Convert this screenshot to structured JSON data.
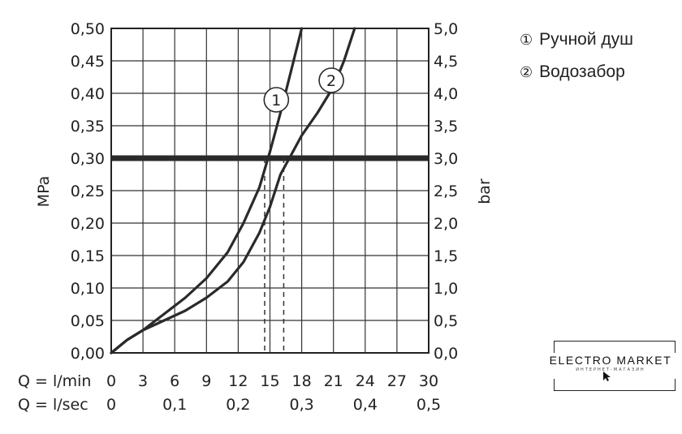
{
  "chart_data": {
    "type": "line",
    "title": "",
    "ylabel": "MPa",
    "ylabel_right": "bar",
    "ylim": [
      0,
      0.5
    ],
    "ylim_right": [
      0,
      5.0
    ],
    "xlim": [
      0,
      30
    ],
    "y_ticks": [
      "0,00",
      "0,05",
      "0,10",
      "0,15",
      "0,20",
      "0,25",
      "0,30",
      "0,35",
      "0,40",
      "0,45",
      "0,50"
    ],
    "y_ticks_right": [
      "0,0",
      "0,5",
      "1,0",
      "1,5",
      "2,0",
      "2,5",
      "3,0",
      "3,5",
      "4,0",
      "4,5",
      "5,0"
    ],
    "x_label_lmin": "Q = l/min",
    "x_ticks_lmin": [
      "0",
      "3",
      "6",
      "9",
      "12",
      "15",
      "18",
      "21",
      "24",
      "27",
      "30"
    ],
    "x_label_lsec": "Q = l/sec",
    "x_ticks_lsec": [
      "0",
      "0,1",
      "0,2",
      "0,3",
      "0,4",
      "0,5"
    ],
    "reference_line_y": 0.3,
    "grid": true,
    "series": [
      {
        "name": "1",
        "x": [
          0,
          1.5,
          3,
          5,
          7,
          9,
          11,
          12.5,
          14,
          15,
          16,
          17,
          18
        ],
        "y": [
          0,
          0.02,
          0.035,
          0.06,
          0.085,
          0.115,
          0.155,
          0.2,
          0.255,
          0.31,
          0.37,
          0.435,
          0.5
        ]
      },
      {
        "name": "2",
        "x": [
          0,
          1.5,
          3,
          5,
          7,
          9,
          11,
          12.5,
          14,
          15,
          16,
          17,
          18,
          19.5,
          21,
          22,
          23
        ],
        "y": [
          0,
          0.02,
          0.035,
          0.05,
          0.065,
          0.085,
          0.11,
          0.14,
          0.185,
          0.225,
          0.275,
          0.305,
          0.335,
          0.37,
          0.41,
          0.45,
          0.5
        ]
      }
    ],
    "drop_lines_x": [
      14.5,
      16.3
    ]
  },
  "legend": [
    {
      "marker": "①",
      "label": "Ручной душ"
    },
    {
      "marker": "②",
      "label": "Водозабор"
    }
  ],
  "logo": {
    "text": "ELECTRO MARKET",
    "subtext": "ИНТЕРНЕТ-МАГАЗИН"
  }
}
